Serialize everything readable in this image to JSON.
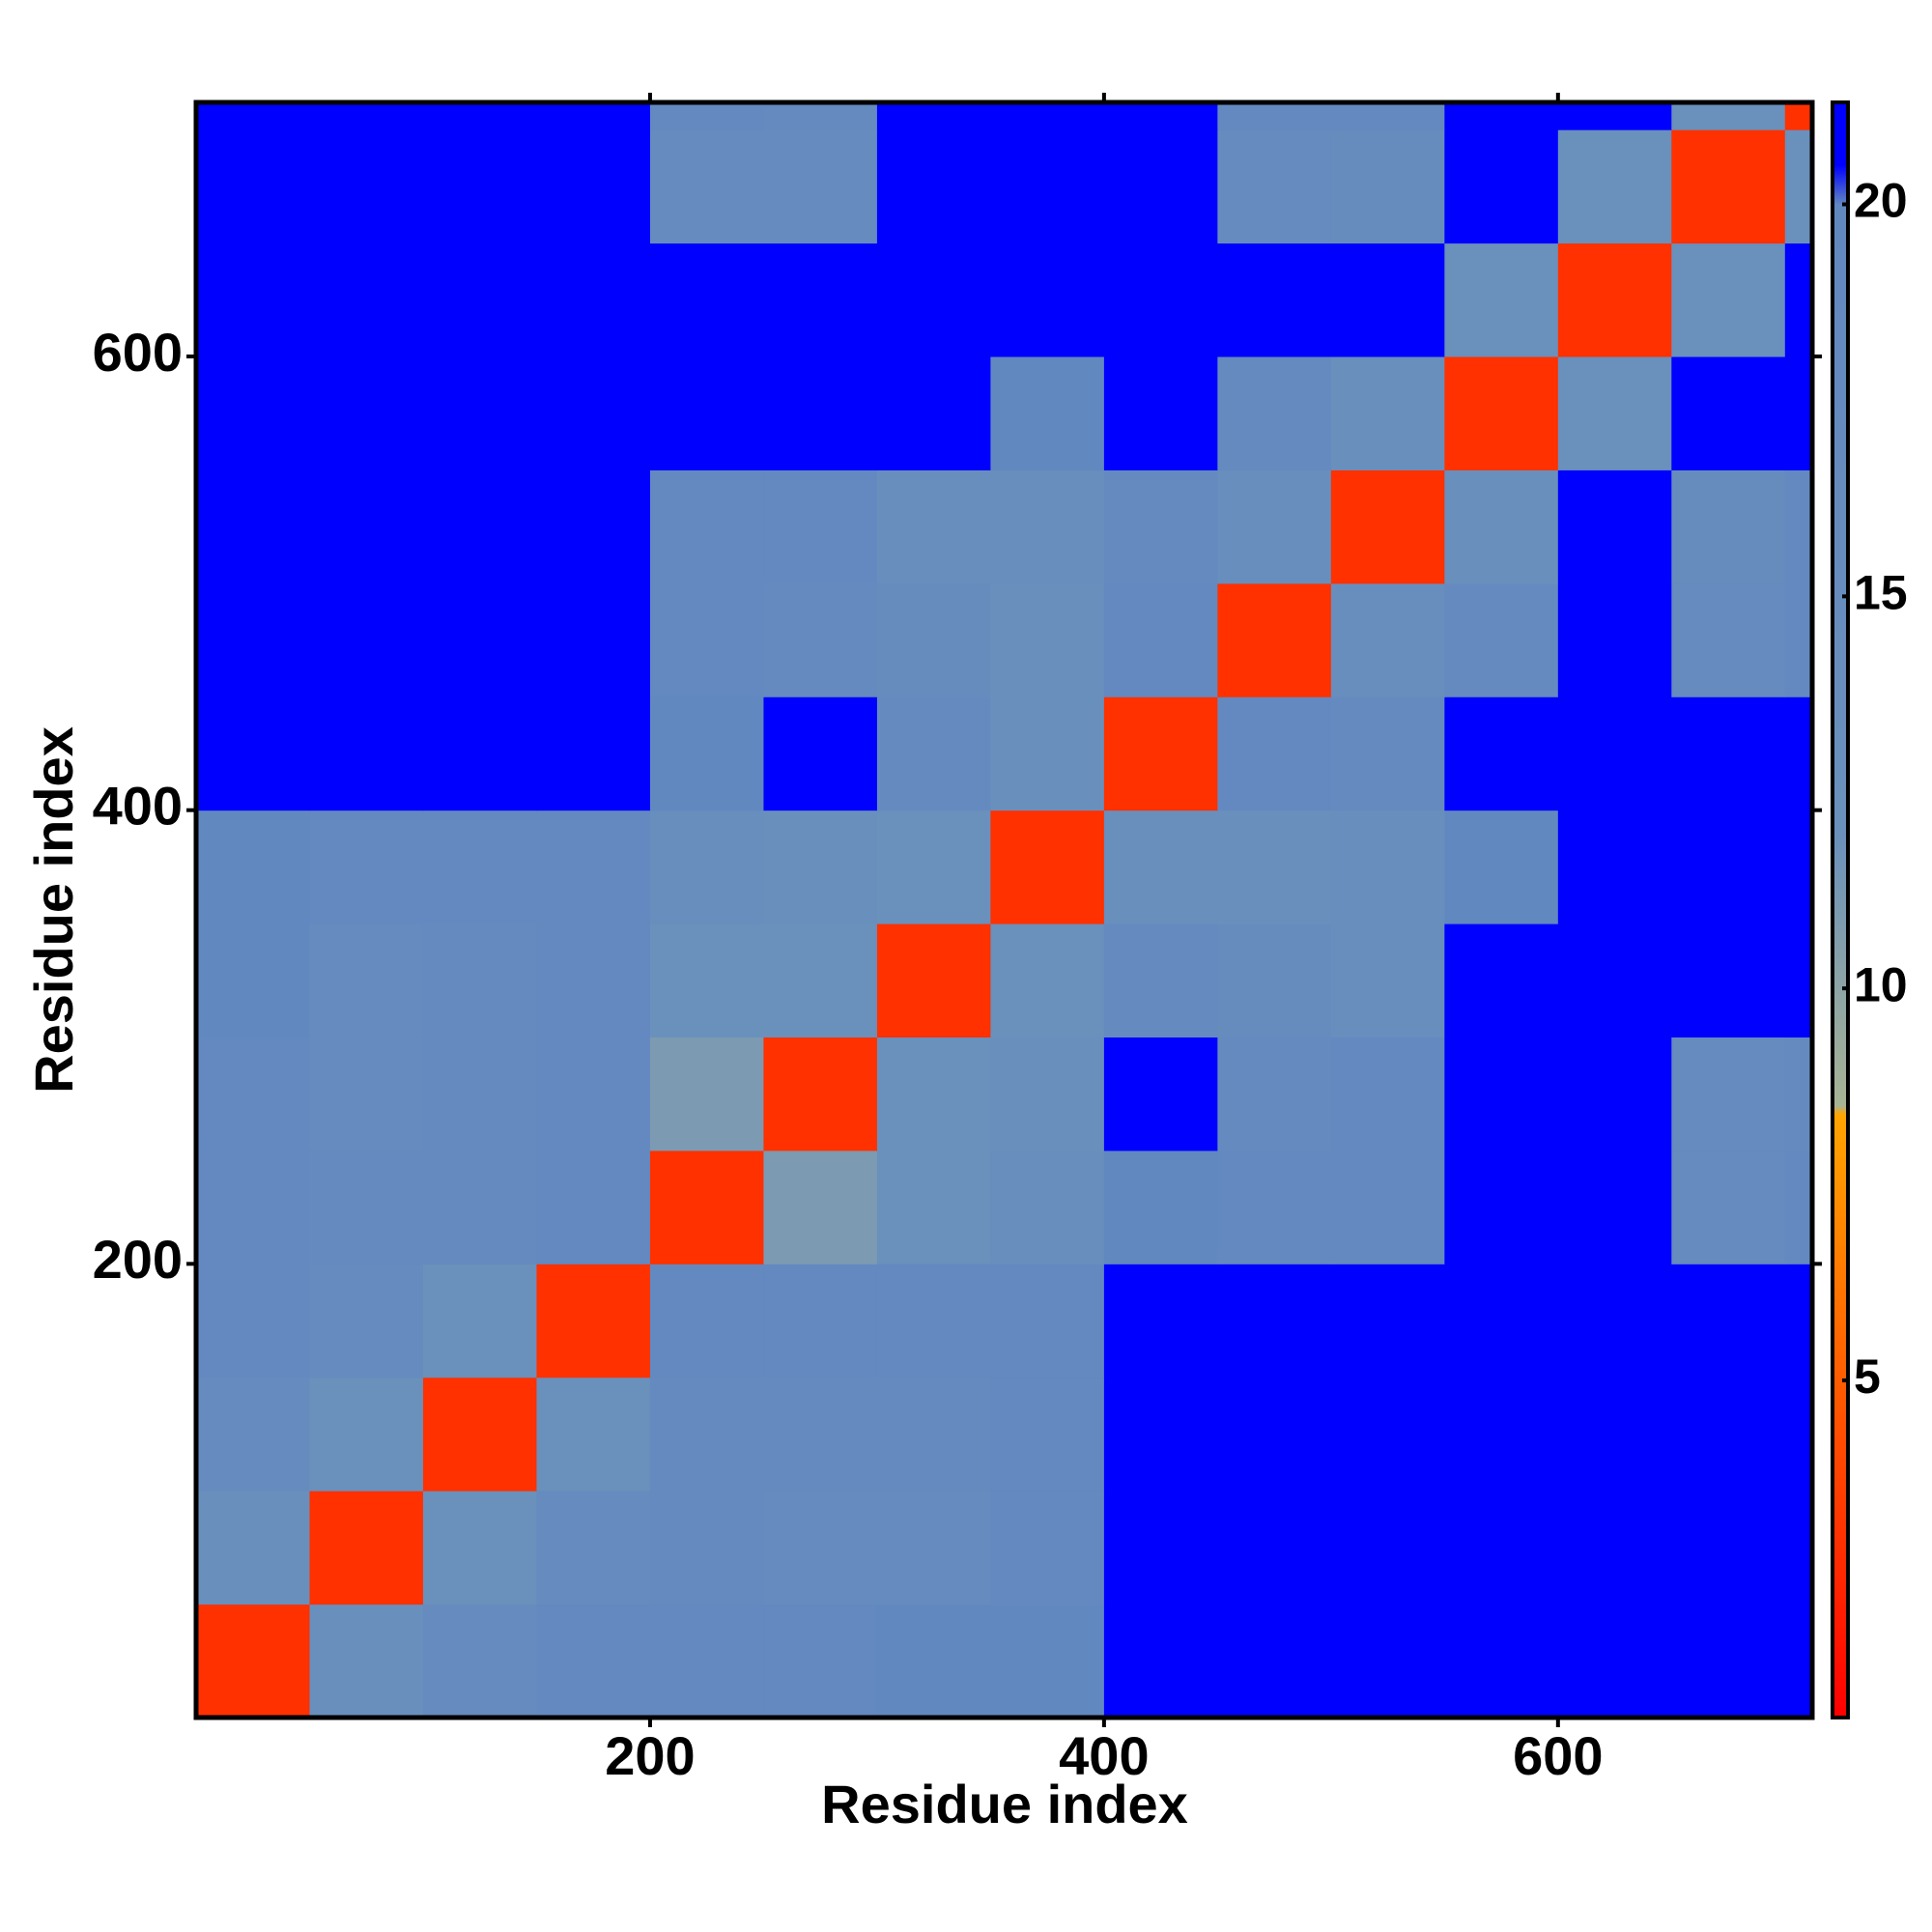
{
  "chart_data": {
    "type": "heatmap",
    "x_label": "Residue index",
    "y_label": "Residue index",
    "bins": [
      0,
      50,
      100,
      150,
      200,
      250,
      300,
      350,
      400,
      450,
      500,
      550,
      600,
      650,
      700,
      712
    ],
    "values": [
      [
        3,
        13,
        17,
        19,
        19,
        19,
        20,
        20,
        21,
        21,
        21,
        21,
        21,
        21,
        21
      ],
      [
        13,
        3,
        12,
        17,
        18,
        17,
        17,
        19,
        21,
        21,
        21,
        21,
        21,
        21,
        21
      ],
      [
        17,
        12,
        3,
        12,
        18,
        18,
        18,
        19,
        21,
        21,
        21,
        21,
        21,
        21,
        21
      ],
      [
        19,
        17,
        12,
        3,
        19,
        19,
        19,
        19,
        21,
        21,
        21,
        21,
        21,
        21,
        21
      ],
      [
        19,
        18,
        18,
        19,
        3,
        11,
        12,
        14,
        20,
        19,
        19,
        21,
        21,
        17,
        19
      ],
      [
        19,
        17,
        18,
        19,
        11,
        3,
        12,
        13,
        21,
        18,
        19,
        21,
        21,
        17,
        18
      ],
      [
        20,
        17,
        18,
        19,
        12,
        12,
        3,
        12,
        18,
        16,
        14,
        21,
        21,
        21,
        21
      ],
      [
        20,
        19,
        19,
        19,
        14,
        13,
        12,
        3,
        13,
        13,
        14,
        20,
        21,
        21,
        21
      ],
      [
        21,
        21,
        21,
        21,
        20,
        21,
        18,
        13,
        3,
        19,
        18,
        21,
        21,
        21,
        21
      ],
      [
        21,
        21,
        21,
        21,
        19,
        18,
        16,
        13,
        19,
        3,
        14,
        18,
        21,
        17,
        19
      ],
      [
        21,
        21,
        21,
        21,
        19,
        19,
        14,
        14,
        18,
        14,
        3,
        13,
        21,
        16,
        19
      ],
      [
        21,
        21,
        21,
        21,
        21,
        21,
        21,
        20,
        21,
        18,
        13,
        3,
        12,
        21,
        21
      ],
      [
        21,
        21,
        21,
        21,
        21,
        21,
        21,
        21,
        21,
        21,
        21,
        12,
        3,
        12,
        21
      ],
      [
        21,
        21,
        21,
        21,
        17,
        17,
        21,
        21,
        21,
        17,
        16,
        21,
        12,
        3,
        12
      ],
      [
        21,
        21,
        21,
        21,
        19,
        18,
        21,
        21,
        21,
        19,
        19,
        21,
        21,
        12,
        3
      ]
    ],
    "xlim": [
      0,
      712
    ],
    "ylim": [
      0,
      712
    ],
    "xticks": [
      200,
      400,
      600
    ],
    "yticks": [
      200,
      400,
      600
    ],
    "clim": [
      0.7,
      21.3
    ],
    "cticks": [
      5,
      10,
      15,
      20
    ],
    "colorscale": [
      [
        0.7,
        "#ff0000"
      ],
      [
        8.4,
        "#ffa500"
      ],
      [
        8.5,
        "#a8b494"
      ],
      [
        12,
        "#6a90bc"
      ],
      [
        20,
        "#6288c0"
      ],
      [
        20.5,
        "#0000ff"
      ],
      [
        21.3,
        "#0000ff"
      ]
    ]
  }
}
